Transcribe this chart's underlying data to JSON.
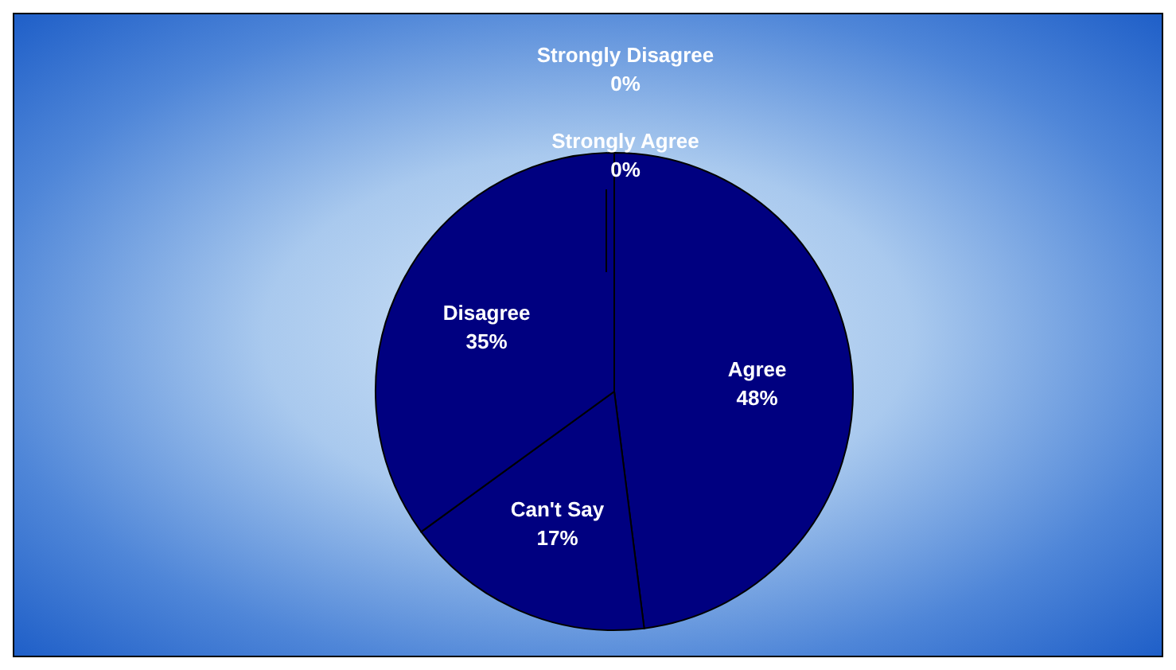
{
  "chart_data": {
    "type": "pie",
    "categories": [
      "Strongly Agree",
      "Agree",
      "Can't Say",
      "Disagree",
      "Strongly Disagree"
    ],
    "values": [
      0,
      48,
      17,
      35,
      0
    ],
    "value_labels": [
      "0%",
      "48%",
      "17%",
      "35%",
      "0%"
    ],
    "colors": [
      "#000080",
      "#000080",
      "#000080",
      "#000080",
      "#000080"
    ],
    "legend": false
  }
}
